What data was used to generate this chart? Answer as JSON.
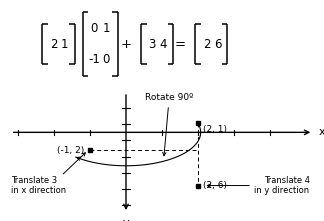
{
  "bg_color": "#ffffff",
  "axis_color": "#000000",
  "rotate_label": "Rotate 90º",
  "translate_x_label": "Translate 3\nin x direction",
  "translate_y_label": "Translate 4\nin y direction",
  "label_21": "(2, 1)",
  "label_m12": "(-1, 2)",
  "label_26": "(2, 6)",
  "x_label": "x",
  "y_label": "y",
  "mat1": [
    "2",
    "1"
  ],
  "mat2": [
    [
      "0",
      "1"
    ],
    [
      "-1",
      "0"
    ]
  ],
  "mat3": [
    "3",
    "4"
  ],
  "mat4": [
    "2",
    "6"
  ],
  "plus": "+",
  "equals": "="
}
